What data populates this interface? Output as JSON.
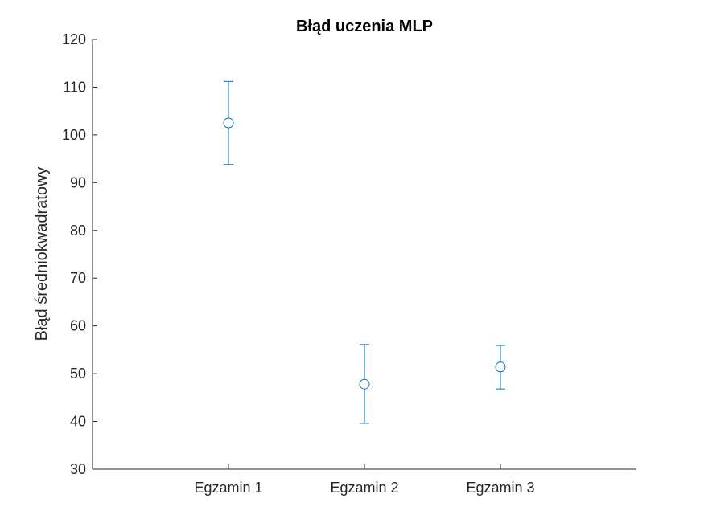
{
  "chart_data": {
    "type": "scatter",
    "title": "Błąd uczenia MLP",
    "xlabel": "",
    "ylabel": "Błąd średniokwadratowy",
    "categories": [
      "Egzamin 1",
      "Egzamin 2",
      "Egzamin 3"
    ],
    "xlim": [
      0,
      4
    ],
    "ylim": [
      30,
      120
    ],
    "yticks": [
      30,
      40,
      50,
      60,
      70,
      80,
      90,
      100,
      110,
      120
    ],
    "grid": false,
    "marker": "circle",
    "color": "#0072BD",
    "series": [
      {
        "values": [
          102.5,
          47.8,
          51.4
        ],
        "error_lower": [
          93.8,
          39.6,
          46.8
        ],
        "error_upper": [
          111.2,
          56.1,
          55.9
        ]
      }
    ]
  }
}
